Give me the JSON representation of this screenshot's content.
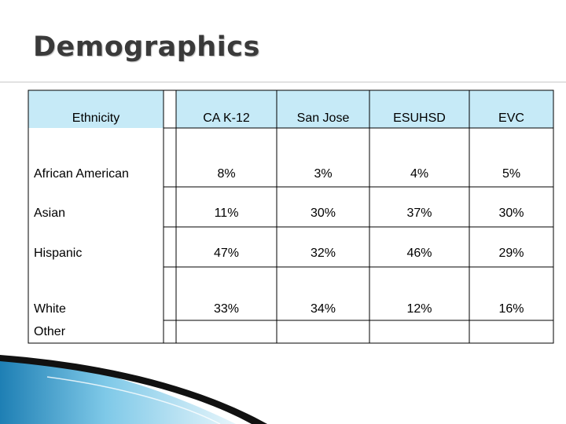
{
  "slide": {
    "title": "Demographics"
  },
  "table": {
    "headers": [
      "Ethnicity",
      "CA  K-12",
      "San Jose",
      "ESUHSD",
      "EVC"
    ],
    "rows": [
      {
        "label": "African American",
        "values": [
          "8%",
          "3%",
          "4%",
          "5%"
        ]
      },
      {
        "label": "Asian",
        "values": [
          "11%",
          "30%",
          "37%",
          "30%"
        ]
      },
      {
        "label": "Hispanic",
        "values": [
          "47%",
          "32%",
          "46%",
          "29%"
        ]
      },
      {
        "label": "White",
        "values": [
          "33%",
          "34%",
          "12%",
          "16%"
        ]
      },
      {
        "label": "Other",
        "values": [
          "",
          "",
          "",
          ""
        ]
      }
    ]
  },
  "colors": {
    "header_fill": "#c6eaf7",
    "title_text": "#3a3a3a",
    "swoosh_blue": "#1e7fb4"
  }
}
